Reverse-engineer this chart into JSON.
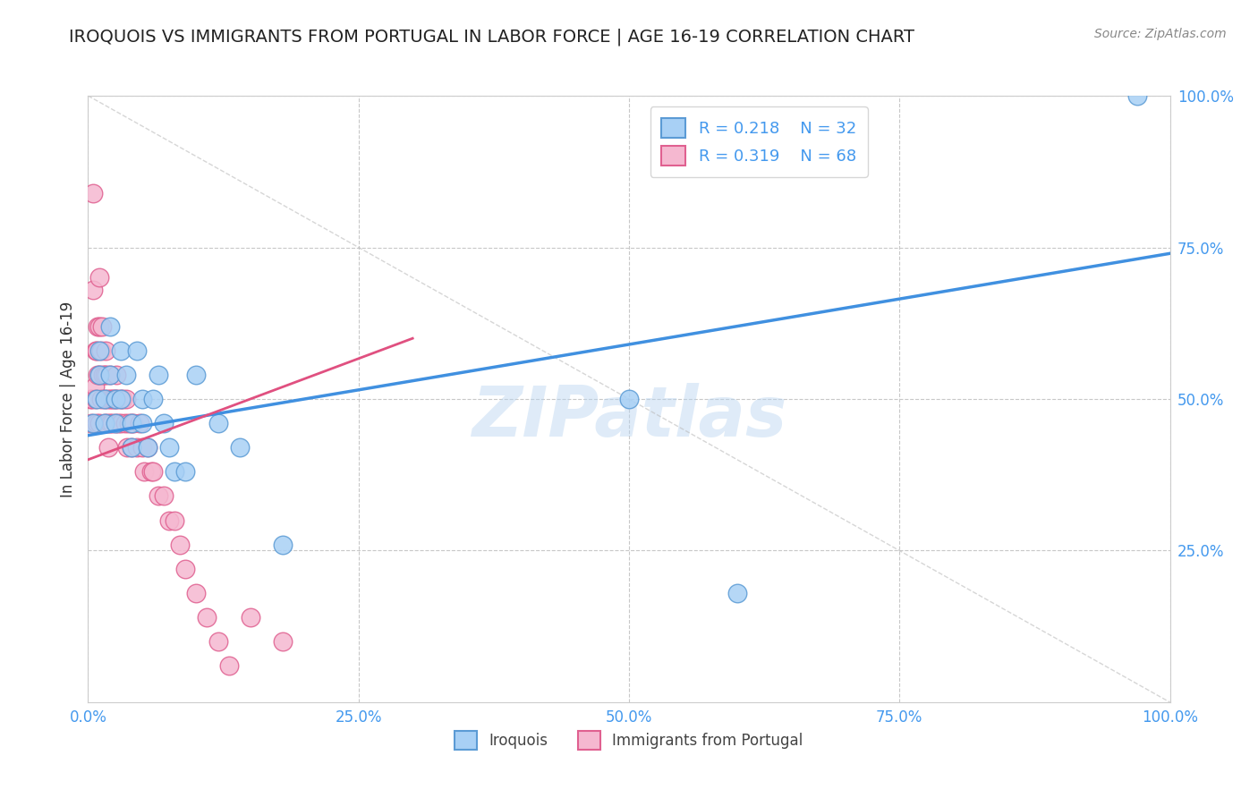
{
  "title": "IROQUOIS VS IMMIGRANTS FROM PORTUGAL IN LABOR FORCE | AGE 16-19 CORRELATION CHART",
  "source": "Source: ZipAtlas.com",
  "ylabel": "In Labor Force | Age 16-19",
  "xlim": [
    0.0,
    1.0
  ],
  "ylim": [
    0.0,
    1.0
  ],
  "xticks": [
    0.0,
    0.25,
    0.5,
    0.75,
    1.0
  ],
  "xticklabels": [
    "0.0%",
    "25.0%",
    "50.0%",
    "75.0%",
    "100.0%"
  ],
  "yticks": [
    0.25,
    0.5,
    0.75,
    1.0
  ],
  "yticklabels": [
    "25.0%",
    "50.0%",
    "75.0%",
    "100.0%"
  ],
  "legend_r_blue": "R = 0.218",
  "legend_n_blue": "N = 32",
  "legend_r_pink": "R = 0.319",
  "legend_n_pink": "N = 68",
  "blue_color": "#a8d0f5",
  "pink_color": "#f5b8d0",
  "blue_edge_color": "#5b9bd5",
  "pink_edge_color": "#e06090",
  "blue_line_color": "#4090e0",
  "pink_line_color": "#e05080",
  "watermark": "ZIPatlas",
  "background_color": "#ffffff",
  "grid_color": "#c8c8c8",
  "axis_color": "#cccccc",
  "tick_label_color": "#4499ee",
  "title_color": "#222222",
  "ylabel_color": "#333333",
  "iroquois_x": [
    0.005,
    0.008,
    0.01,
    0.01,
    0.015,
    0.015,
    0.02,
    0.02,
    0.025,
    0.025,
    0.03,
    0.03,
    0.035,
    0.04,
    0.04,
    0.045,
    0.05,
    0.05,
    0.055,
    0.06,
    0.065,
    0.07,
    0.075,
    0.08,
    0.09,
    0.1,
    0.12,
    0.14,
    0.18,
    0.5,
    0.6,
    0.97
  ],
  "iroquois_y": [
    0.46,
    0.5,
    0.54,
    0.58,
    0.5,
    0.46,
    0.62,
    0.54,
    0.5,
    0.46,
    0.58,
    0.5,
    0.54,
    0.46,
    0.42,
    0.58,
    0.5,
    0.46,
    0.42,
    0.5,
    0.54,
    0.46,
    0.42,
    0.38,
    0.38,
    0.54,
    0.46,
    0.42,
    0.26,
    0.5,
    0.18,
    1.0
  ],
  "portugal_x": [
    0.002,
    0.003,
    0.004,
    0.005,
    0.005,
    0.006,
    0.007,
    0.007,
    0.008,
    0.008,
    0.009,
    0.009,
    0.01,
    0.01,
    0.01,
    0.01,
    0.012,
    0.012,
    0.013,
    0.014,
    0.015,
    0.015,
    0.015,
    0.016,
    0.017,
    0.018,
    0.018,
    0.019,
    0.02,
    0.02,
    0.02,
    0.022,
    0.022,
    0.024,
    0.025,
    0.025,
    0.026,
    0.027,
    0.028,
    0.03,
    0.03,
    0.032,
    0.034,
    0.035,
    0.036,
    0.038,
    0.04,
    0.04,
    0.042,
    0.045,
    0.048,
    0.05,
    0.052,
    0.055,
    0.058,
    0.06,
    0.065,
    0.07,
    0.075,
    0.08,
    0.085,
    0.09,
    0.1,
    0.11,
    0.12,
    0.13,
    0.15,
    0.18
  ],
  "portugal_y": [
    0.5,
    0.46,
    0.5,
    0.84,
    0.68,
    0.52,
    0.58,
    0.5,
    0.58,
    0.46,
    0.62,
    0.54,
    0.7,
    0.62,
    0.54,
    0.46,
    0.58,
    0.5,
    0.62,
    0.54,
    0.54,
    0.5,
    0.46,
    0.58,
    0.54,
    0.5,
    0.46,
    0.42,
    0.54,
    0.5,
    0.46,
    0.5,
    0.46,
    0.5,
    0.5,
    0.46,
    0.54,
    0.5,
    0.46,
    0.5,
    0.46,
    0.5,
    0.46,
    0.5,
    0.42,
    0.46,
    0.46,
    0.42,
    0.46,
    0.42,
    0.46,
    0.42,
    0.38,
    0.42,
    0.38,
    0.38,
    0.34,
    0.34,
    0.3,
    0.3,
    0.26,
    0.22,
    0.18,
    0.14,
    0.1,
    0.06,
    0.14,
    0.1
  ],
  "blue_trend_x": [
    0.0,
    1.0
  ],
  "blue_trend_y": [
    0.44,
    0.74
  ],
  "pink_trend_x": [
    0.0,
    0.3
  ],
  "pink_trend_y": [
    0.4,
    0.6
  ]
}
